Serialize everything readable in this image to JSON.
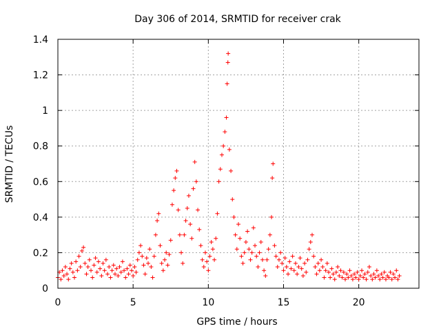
{
  "chart_data": {
    "type": "scatter",
    "title": "Day 306 of 2014, SRMTID for receiver crak",
    "xlabel": "GPS time / hours",
    "ylabel": "SRMTID / TECUs",
    "xlim": [
      0,
      24
    ],
    "ylim": [
      0,
      1.4
    ],
    "xticks": [
      0,
      5,
      10,
      15,
      20
    ],
    "xtick_labels": [
      "0",
      "5",
      "10",
      "15",
      "20"
    ],
    "yticks": [
      0,
      0.2,
      0.4,
      0.6,
      0.8,
      1,
      1.2,
      1.4
    ],
    "ytick_labels": [
      "0",
      "0.2",
      "0.4",
      "0.6",
      "0.8",
      "1",
      "1.2",
      "1.4"
    ],
    "grid": true,
    "marker": "plus",
    "color": "#ff0000",
    "series": [
      {
        "name": "SRMTID",
        "points": [
          [
            0.0,
            0.06
          ],
          [
            0.1,
            0.09
          ],
          [
            0.2,
            0.05
          ],
          [
            0.3,
            0.1
          ],
          [
            0.4,
            0.07
          ],
          [
            0.5,
            0.12
          ],
          [
            0.6,
            0.08
          ],
          [
            0.7,
            0.05
          ],
          [
            0.8,
            0.11
          ],
          [
            0.9,
            0.14
          ],
          [
            1.0,
            0.09
          ],
          [
            1.1,
            0.06
          ],
          [
            1.2,
            0.15
          ],
          [
            1.3,
            0.1
          ],
          [
            1.4,
            0.18
          ],
          [
            1.5,
            0.12
          ],
          [
            1.6,
            0.21
          ],
          [
            1.7,
            0.23
          ],
          [
            1.8,
            0.14
          ],
          [
            1.9,
            0.08
          ],
          [
            2.0,
            0.12
          ],
          [
            2.1,
            0.16
          ],
          [
            2.2,
            0.1
          ],
          [
            2.3,
            0.06
          ],
          [
            2.4,
            0.13
          ],
          [
            2.5,
            0.17
          ],
          [
            2.6,
            0.09
          ],
          [
            2.7,
            0.15
          ],
          [
            2.8,
            0.11
          ],
          [
            2.9,
            0.07
          ],
          [
            3.0,
            0.14
          ],
          [
            3.1,
            0.1
          ],
          [
            3.2,
            0.16
          ],
          [
            3.3,
            0.08
          ],
          [
            3.4,
            0.12
          ],
          [
            3.5,
            0.06
          ],
          [
            3.6,
            0.1
          ],
          [
            3.7,
            0.13
          ],
          [
            3.8,
            0.08
          ],
          [
            3.9,
            0.11
          ],
          [
            4.0,
            0.07
          ],
          [
            4.1,
            0.12
          ],
          [
            4.2,
            0.09
          ],
          [
            4.3,
            0.15
          ],
          [
            4.4,
            0.1
          ],
          [
            4.5,
            0.06
          ],
          [
            4.6,
            0.11
          ],
          [
            4.7,
            0.08
          ],
          [
            4.8,
            0.13
          ],
          [
            4.9,
            0.1
          ],
          [
            5.0,
            0.07
          ],
          [
            5.1,
            0.12
          ],
          [
            5.2,
            0.09
          ],
          [
            5.3,
            0.16
          ],
          [
            5.4,
            0.2
          ],
          [
            5.5,
            0.24
          ],
          [
            5.6,
            0.18
          ],
          [
            5.7,
            0.13
          ],
          [
            5.8,
            0.08
          ],
          [
            5.9,
            0.17
          ],
          [
            6.0,
            0.14
          ],
          [
            6.1,
            0.22
          ],
          [
            6.2,
            0.12
          ],
          [
            6.3,
            0.06
          ],
          [
            6.4,
            0.18
          ],
          [
            6.5,
            0.3
          ],
          [
            6.6,
            0.38
          ],
          [
            6.7,
            0.42
          ],
          [
            6.8,
            0.24
          ],
          [
            6.9,
            0.14
          ],
          [
            7.0,
            0.1
          ],
          [
            7.1,
            0.16
          ],
          [
            7.2,
            0.2
          ],
          [
            7.3,
            0.13
          ],
          [
            7.4,
            0.19
          ],
          [
            7.5,
            0.27
          ],
          [
            7.6,
            0.47
          ],
          [
            7.7,
            0.55
          ],
          [
            7.8,
            0.62
          ],
          [
            7.9,
            0.66
          ],
          [
            8.0,
            0.44
          ],
          [
            8.1,
            0.3
          ],
          [
            8.2,
            0.2
          ],
          [
            8.3,
            0.14
          ],
          [
            8.4,
            0.3
          ],
          [
            8.5,
            0.38
          ],
          [
            8.6,
            0.45
          ],
          [
            8.7,
            0.52
          ],
          [
            8.8,
            0.36
          ],
          [
            8.9,
            0.28
          ],
          [
            9.0,
            0.56
          ],
          [
            9.1,
            0.71
          ],
          [
            9.2,
            0.6
          ],
          [
            9.3,
            0.44
          ],
          [
            9.4,
            0.33
          ],
          [
            9.5,
            0.24
          ],
          [
            9.6,
            0.16
          ],
          [
            9.7,
            0.12
          ],
          [
            9.8,
            0.2
          ],
          [
            9.9,
            0.15
          ],
          [
            10.0,
            0.1
          ],
          [
            10.1,
            0.18
          ],
          [
            10.2,
            0.26
          ],
          [
            10.3,
            0.22
          ],
          [
            10.4,
            0.16
          ],
          [
            10.5,
            0.28
          ],
          [
            10.6,
            0.42
          ],
          [
            10.7,
            0.6
          ],
          [
            10.8,
            0.67
          ],
          [
            10.9,
            0.75
          ],
          [
            11.0,
            0.8
          ],
          [
            11.1,
            0.88
          ],
          [
            11.2,
            0.96
          ],
          [
            11.25,
            1.15
          ],
          [
            11.3,
            1.27
          ],
          [
            11.32,
            1.32
          ],
          [
            11.4,
            0.78
          ],
          [
            11.5,
            0.66
          ],
          [
            11.6,
            0.5
          ],
          [
            11.7,
            0.4
          ],
          [
            11.8,
            0.3
          ],
          [
            11.9,
            0.22
          ],
          [
            12.0,
            0.36
          ],
          [
            12.1,
            0.28
          ],
          [
            12.2,
            0.18
          ],
          [
            12.3,
            0.14
          ],
          [
            12.4,
            0.2
          ],
          [
            12.5,
            0.26
          ],
          [
            12.6,
            0.32
          ],
          [
            12.7,
            0.22
          ],
          [
            12.8,
            0.16
          ],
          [
            12.9,
            0.2
          ],
          [
            13.0,
            0.34
          ],
          [
            13.1,
            0.24
          ],
          [
            13.2,
            0.18
          ],
          [
            13.3,
            0.12
          ],
          [
            13.4,
            0.2
          ],
          [
            13.5,
            0.26
          ],
          [
            13.6,
            0.16
          ],
          [
            13.7,
            0.1
          ],
          [
            13.8,
            0.07
          ],
          [
            13.9,
            0.16
          ],
          [
            14.0,
            0.22
          ],
          [
            14.1,
            0.3
          ],
          [
            14.2,
            0.4
          ],
          [
            14.25,
            0.62
          ],
          [
            14.3,
            0.7
          ],
          [
            14.4,
            0.24
          ],
          [
            14.5,
            0.18
          ],
          [
            14.6,
            0.12
          ],
          [
            14.7,
            0.16
          ],
          [
            14.8,
            0.2
          ],
          [
            14.9,
            0.14
          ],
          [
            15.0,
            0.1
          ],
          [
            15.1,
            0.17
          ],
          [
            15.2,
            0.12
          ],
          [
            15.3,
            0.08
          ],
          [
            15.4,
            0.15
          ],
          [
            15.5,
            0.11
          ],
          [
            15.6,
            0.18
          ],
          [
            15.7,
            0.1
          ],
          [
            15.8,
            0.14
          ],
          [
            15.9,
            0.08
          ],
          [
            16.0,
            0.12
          ],
          [
            16.1,
            0.17
          ],
          [
            16.2,
            0.11
          ],
          [
            16.3,
            0.07
          ],
          [
            16.4,
            0.14
          ],
          [
            16.5,
            0.09
          ],
          [
            16.6,
            0.16
          ],
          [
            16.7,
            0.22
          ],
          [
            16.8,
            0.26
          ],
          [
            16.9,
            0.3
          ],
          [
            17.0,
            0.18
          ],
          [
            17.1,
            0.12
          ],
          [
            17.2,
            0.08
          ],
          [
            17.3,
            0.14
          ],
          [
            17.4,
            0.1
          ],
          [
            17.5,
            0.16
          ],
          [
            17.6,
            0.12
          ],
          [
            17.7,
            0.06
          ],
          [
            17.8,
            0.1
          ],
          [
            17.9,
            0.14
          ],
          [
            18.0,
            0.09
          ],
          [
            18.1,
            0.06
          ],
          [
            18.2,
            0.11
          ],
          [
            18.3,
            0.08
          ],
          [
            18.4,
            0.05
          ],
          [
            18.5,
            0.09
          ],
          [
            18.6,
            0.12
          ],
          [
            18.7,
            0.07
          ],
          [
            18.8,
            0.1
          ],
          [
            18.9,
            0.06
          ],
          [
            19.0,
            0.09
          ],
          [
            19.1,
            0.05
          ],
          [
            19.2,
            0.08
          ],
          [
            19.3,
            0.06
          ],
          [
            19.4,
            0.1
          ],
          [
            19.5,
            0.07
          ],
          [
            19.6,
            0.05
          ],
          [
            19.7,
            0.08
          ],
          [
            19.8,
            0.06
          ],
          [
            19.9,
            0.09
          ],
          [
            20.0,
            0.05
          ],
          [
            20.1,
            0.07
          ],
          [
            20.2,
            0.1
          ],
          [
            20.3,
            0.06
          ],
          [
            20.4,
            0.08
          ],
          [
            20.5,
            0.05
          ],
          [
            20.6,
            0.09
          ],
          [
            20.7,
            0.12
          ],
          [
            20.8,
            0.07
          ],
          [
            20.9,
            0.05
          ],
          [
            21.0,
            0.08
          ],
          [
            21.1,
            0.06
          ],
          [
            21.2,
            0.1
          ],
          [
            21.3,
            0.07
          ],
          [
            21.4,
            0.05
          ],
          [
            21.5,
            0.08
          ],
          [
            21.6,
            0.06
          ],
          [
            21.7,
            0.09
          ],
          [
            21.8,
            0.05
          ],
          [
            21.9,
            0.07
          ],
          [
            22.0,
            0.06
          ],
          [
            22.1,
            0.09
          ],
          [
            22.2,
            0.05
          ],
          [
            22.3,
            0.08
          ],
          [
            22.4,
            0.06
          ],
          [
            22.5,
            0.1
          ],
          [
            22.6,
            0.05
          ],
          [
            22.7,
            0.07
          ]
        ]
      }
    ]
  }
}
